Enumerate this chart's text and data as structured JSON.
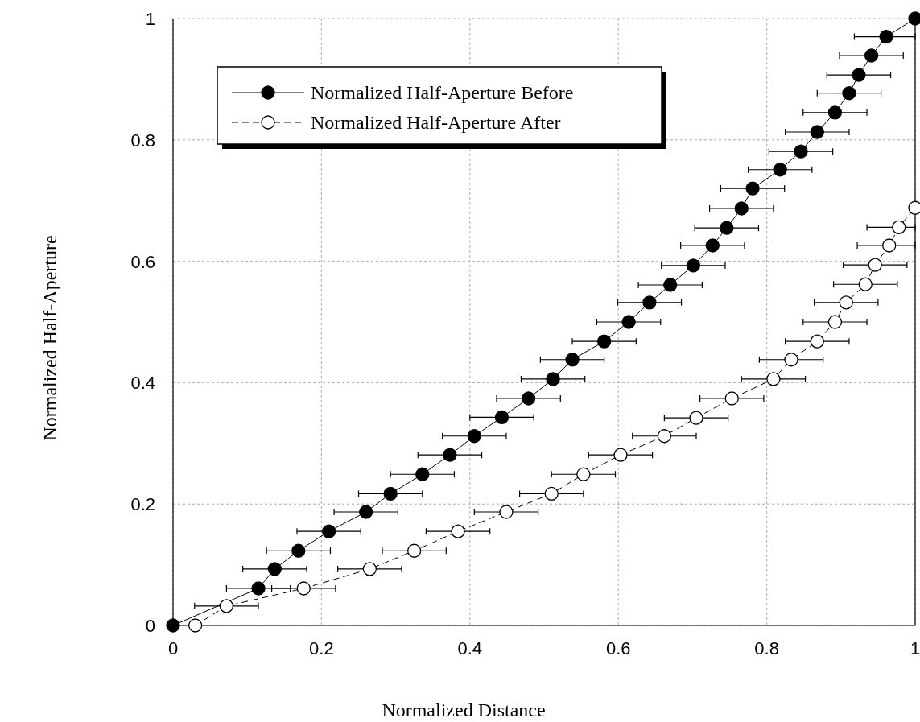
{
  "chart_data": {
    "type": "line",
    "xlabel": "Normalized Distance",
    "ylabel": "Normalized Half-Aperture",
    "xlim": [
      0,
      1
    ],
    "ylim": [
      0,
      1
    ],
    "xticks": [
      0,
      0.2,
      0.4,
      0.6,
      0.8,
      1
    ],
    "yticks": [
      0,
      0.2,
      0.4,
      0.6,
      0.8,
      1
    ],
    "grid": true,
    "legend": "top left",
    "series": [
      {
        "name": "Normalized Half-Aperture Before",
        "color": "#000000",
        "marker": "circle",
        "line_style": "solid",
        "x": [
          0,
          0.115,
          0.137,
          0.169,
          0.21,
          0.26,
          0.293,
          0.336,
          0.373,
          0.406,
          0.443,
          0.479,
          0.512,
          0.538,
          0.581,
          0.614,
          0.642,
          0.67,
          0.701,
          0.727,
          0.746,
          0.766,
          0.781,
          0.818,
          0.846,
          0.868,
          0.892,
          0.911,
          0.924,
          0.941,
          0.961,
          1
        ],
        "values": [
          0,
          0.061,
          0.093,
          0.123,
          0.155,
          0.187,
          0.217,
          0.249,
          0.281,
          0.312,
          0.343,
          0.374,
          0.406,
          0.438,
          0.468,
          0.5,
          0.532,
          0.561,
          0.593,
          0.626,
          0.655,
          0.687,
          0.72,
          0.751,
          0.781,
          0.813,
          0.845,
          0.877,
          0.907,
          0.939,
          0.97,
          1
        ],
        "xerrors": [
          null,
          0.043,
          0.043,
          0.043,
          0.043,
          0.043,
          0.043,
          0.043,
          0.043,
          0.043,
          0.043,
          0.043,
          0.043,
          0.043,
          0.043,
          0.043,
          0.043,
          0.043,
          0.043,
          0.043,
          0.043,
          0.043,
          0.043,
          0.043,
          0.043,
          0.043,
          0.043,
          0.043,
          0.043,
          0.043,
          [
            0.918,
            1
          ],
          null
        ]
      },
      {
        "name": "Normalized Half-Aperture After",
        "color": "#000000",
        "marker": "circle",
        "line_style": "dashed",
        "x": [
          0.03,
          0.072,
          0.176,
          0.265,
          0.325,
          0.384,
          0.449,
          0.51,
          0.553,
          0.603,
          0.662,
          0.705,
          0.753,
          0.809,
          0.833,
          0.868,
          0.892,
          0.907,
          0.933,
          0.946,
          0.965,
          0.978,
          1
        ],
        "values": [
          0,
          0.032,
          0.061,
          0.093,
          0.123,
          0.155,
          0.187,
          0.217,
          0.249,
          0.281,
          0.312,
          0.342,
          0.374,
          0.406,
          0.438,
          0.468,
          0.5,
          0.532,
          0.562,
          0.594,
          0.626,
          0.656,
          0.688
        ],
        "xerrors": [
          null,
          0.043,
          0.043,
          0.043,
          0.043,
          0.043,
          0.043,
          0.043,
          0.043,
          0.043,
          0.043,
          0.043,
          0.043,
          0.043,
          0.043,
          0.043,
          0.043,
          0.043,
          0.043,
          0.043,
          [
            0.922,
            1
          ],
          [
            0.935,
            1
          ],
          null
        ]
      }
    ]
  }
}
